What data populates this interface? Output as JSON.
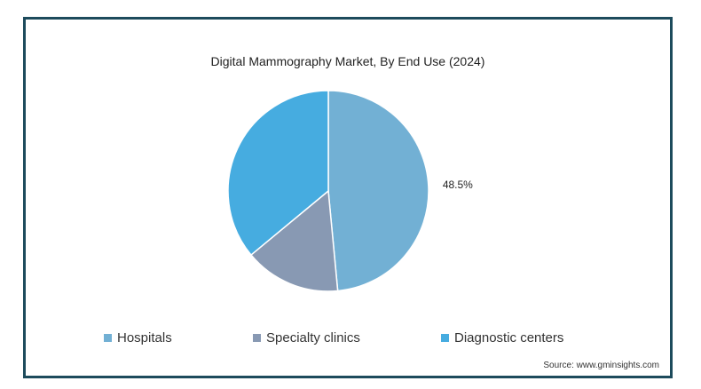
{
  "chart_data": {
    "type": "pie",
    "title": "Digital Mammography Market, By End Use (2024)",
    "categories": [
      "Hospitals",
      "Specialty clinics",
      "Diagnostic centers"
    ],
    "values": [
      48.5,
      15.5,
      36.0
    ],
    "labels": [
      "48.5%",
      "",
      ""
    ],
    "colors": [
      "#72b0d4",
      "#8899b3",
      "#46ace0"
    ],
    "legend_position": "bottom",
    "source": "Source: www.gminsights.com"
  }
}
